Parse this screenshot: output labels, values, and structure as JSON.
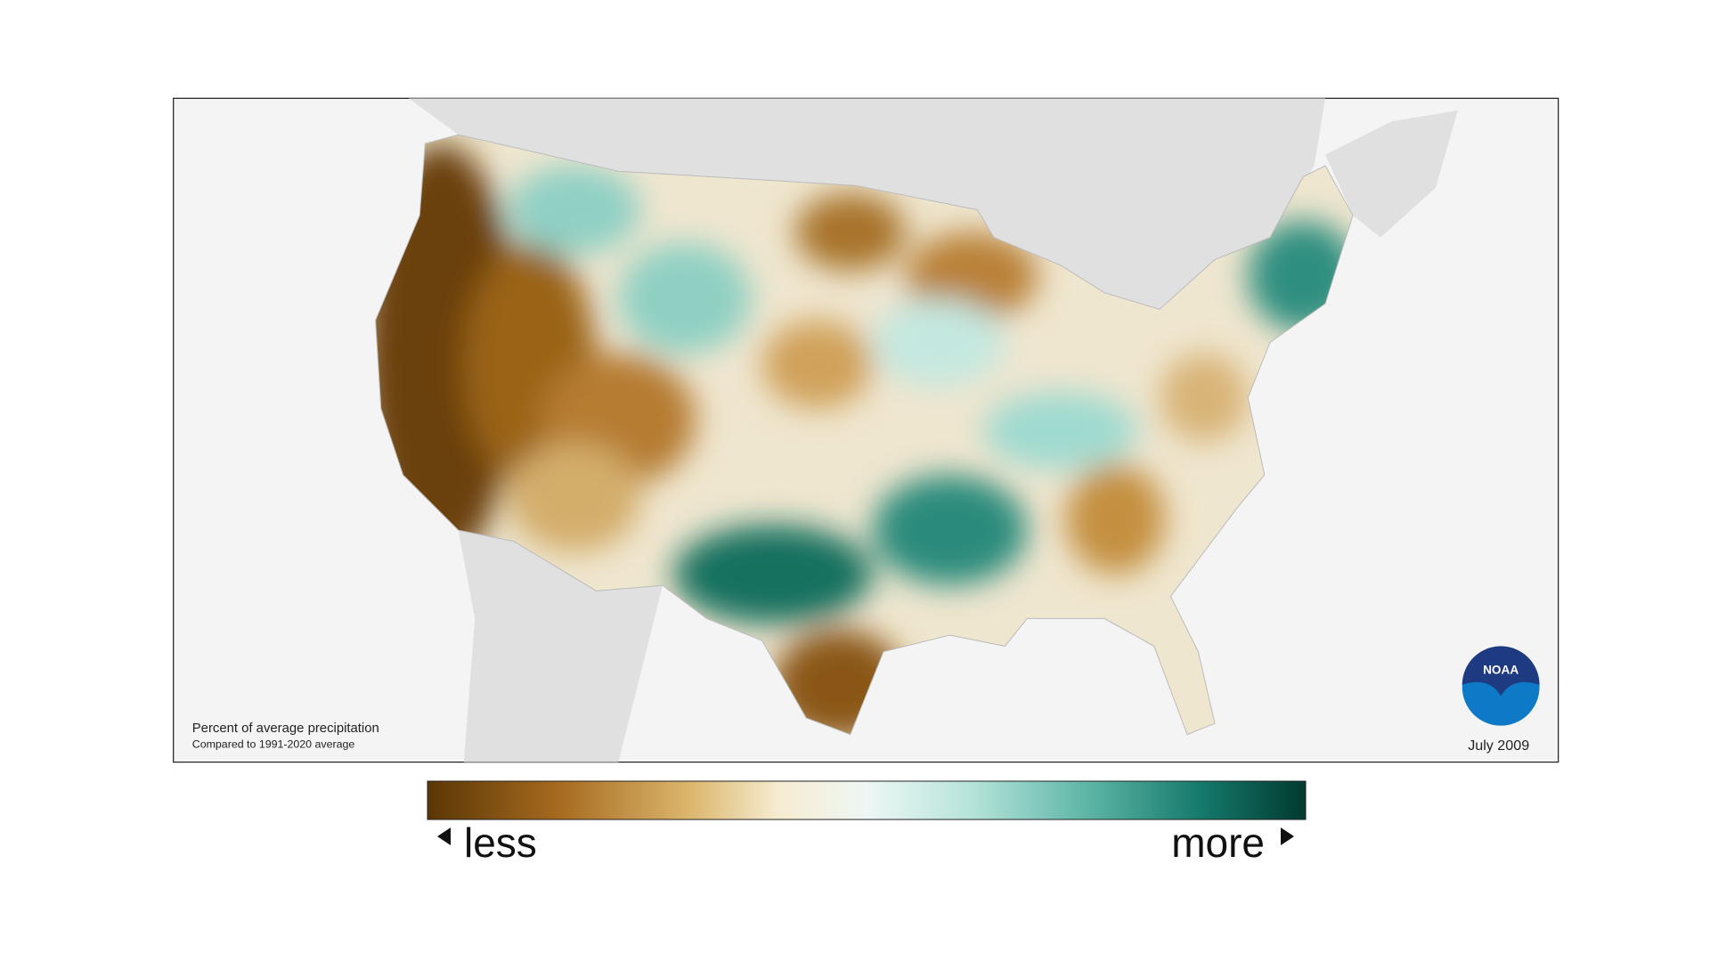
{
  "map": {
    "title": "Percent of average precipitation",
    "subtitle": "Compared to 1991-2020 average",
    "date": "July 2009",
    "logo": "NOAA"
  },
  "legend": {
    "low_label": "less",
    "high_label": "more"
  }
}
